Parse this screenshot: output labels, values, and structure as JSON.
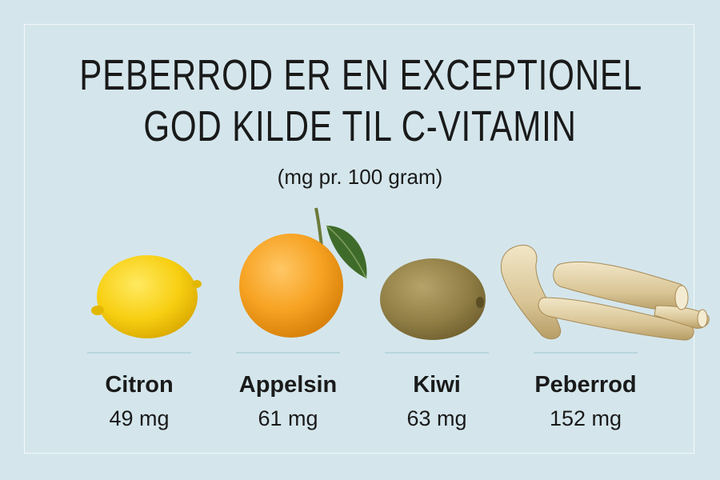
{
  "title_line1": "PEBERROD ER EN EXCEPTIONEL",
  "title_line2": "GOD KILDE TIL C-VITAMIN",
  "subtitle": "(mg pr. 100 gram)",
  "chart_data": {
    "type": "table",
    "title": "PEBERROD ER EN EXCEPTIONEL GOD KILDE TIL C-VITAMIN",
    "subtitle": "(mg pr. 100 gram)",
    "categories": [
      "Citron",
      "Appelsin",
      "Kiwi",
      "Peberrod"
    ],
    "values": [
      49,
      61,
      63,
      152
    ],
    "value_labels": [
      "49 mg",
      "61 mg",
      "63 mg",
      "152 mg"
    ],
    "unit": "mg",
    "icons": [
      "lemon-icon",
      "orange-icon",
      "kiwi-icon",
      "horseradish-icon"
    ]
  },
  "colors": {
    "background": "#d4e6ec",
    "frame": "#f4f8fa",
    "text": "#1a1a1a",
    "divider": "#b9d4dc"
  }
}
